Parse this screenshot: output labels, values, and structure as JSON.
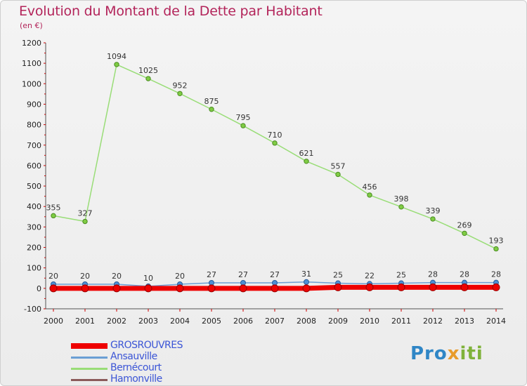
{
  "title": "Evolution du Montant de la Dette par Habitant",
  "subtitle": "(en €)",
  "logo": {
    "p1": "Pro",
    "p2": "x",
    "p3": "iti"
  },
  "chart_data": {
    "type": "line",
    "ylim": [
      -100,
      1200
    ],
    "yticks": [
      -100,
      0,
      100,
      200,
      300,
      400,
      500,
      600,
      700,
      800,
      900,
      1000,
      1100,
      1200
    ],
    "x": [
      "2000",
      "2001",
      "2002",
      "2003",
      "2004",
      "2005",
      "2006",
      "2007",
      "2008",
      "2009",
      "2010",
      "2011",
      "2012",
      "2013",
      "2014"
    ],
    "grid": false,
    "legend": "bottom-left",
    "series": [
      {
        "name": "GROSROUVRES",
        "color": "#ee0000",
        "values": [
          0,
          0,
          0,
          0,
          0,
          0,
          0,
          0,
          0,
          5,
          5,
          5,
          5,
          5,
          5
        ]
      },
      {
        "name": "Ansauville",
        "color": "#6b9fd4",
        "values": [
          20,
          20,
          20,
          10,
          20,
          27,
          27,
          27,
          31,
          25,
          22,
          25,
          28,
          28,
          28
        ]
      },
      {
        "name": "Bernécourt",
        "color": "#99dd77",
        "values": [
          355,
          327,
          1094,
          1025,
          952,
          875,
          795,
          710,
          621,
          557,
          456,
          398,
          339,
          269,
          193
        ]
      },
      {
        "name": "Hamonville",
        "color": "#8b5a5a",
        "values": [
          0,
          0,
          0,
          0,
          0,
          0,
          0,
          0,
          0,
          0,
          0,
          0,
          0,
          0,
          0
        ]
      }
    ]
  }
}
